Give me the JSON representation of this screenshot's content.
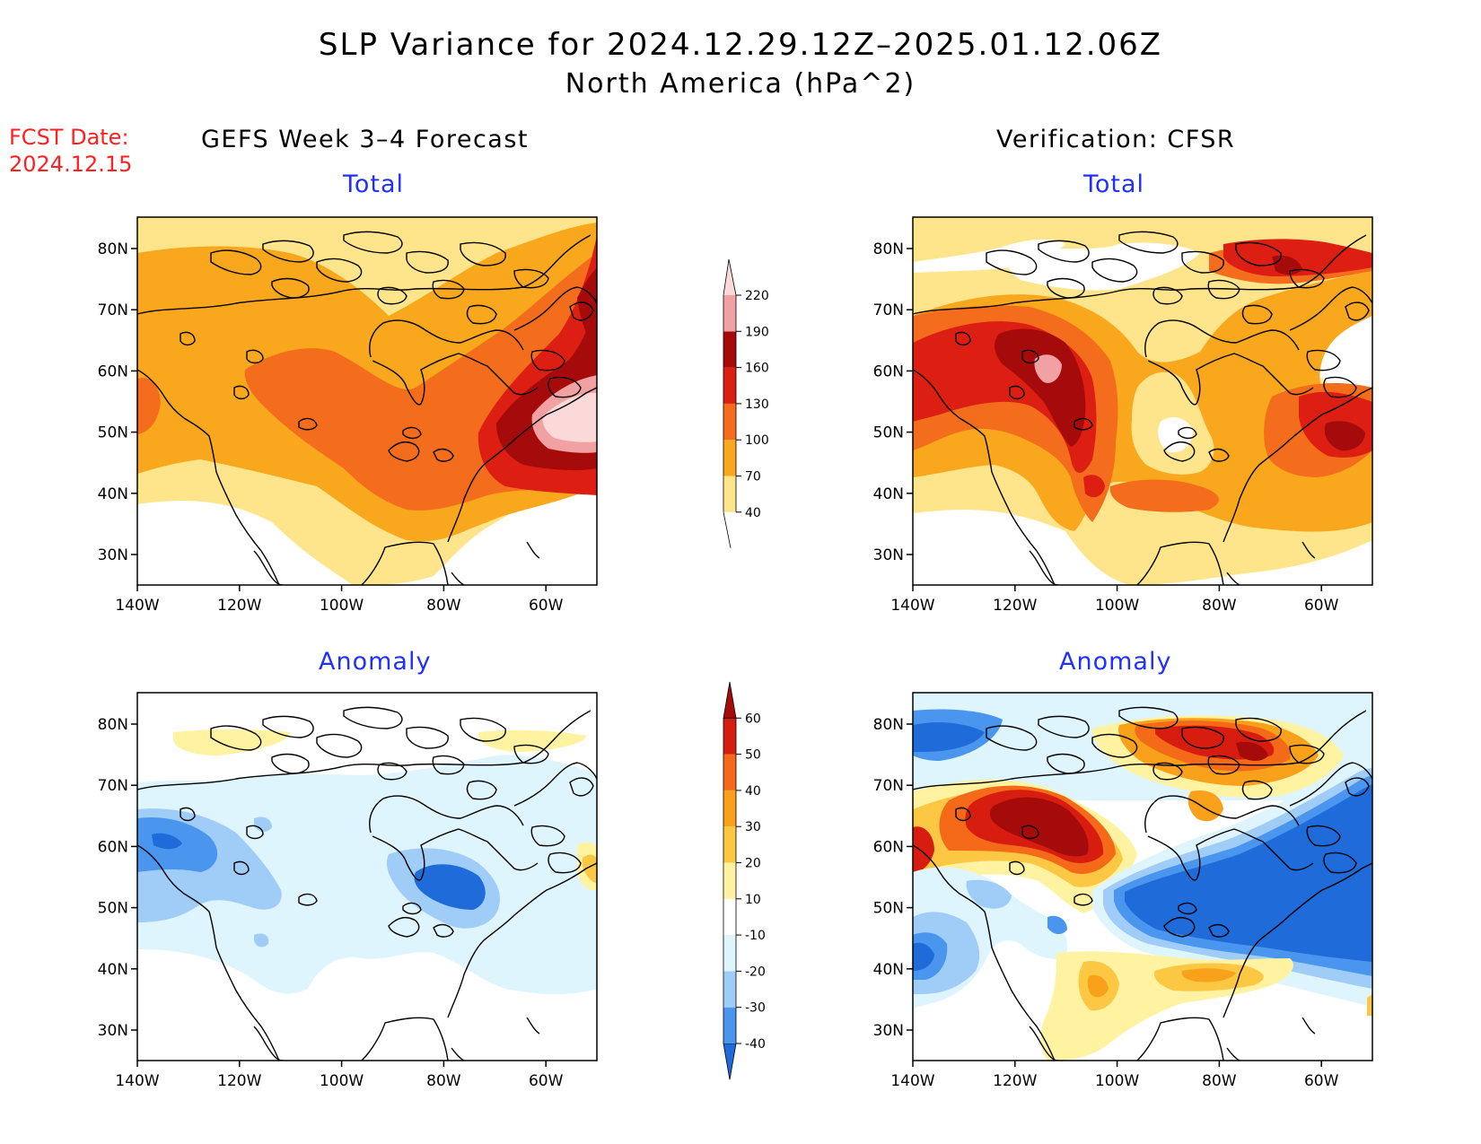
{
  "title": "SLP Variance for 2024.12.29.12Z–2025.01.12.06Z",
  "subtitle": "North America (hPa^2)",
  "fcst_label": "FCST Date:",
  "fcst_date": "2024.12.15",
  "left_header": "GEFS Week 3–4 Forecast",
  "right_header": "Verification: CFSR",
  "panels": [
    {
      "id": "fcst-total",
      "title": "Total"
    },
    {
      "id": "verif-total",
      "title": "Total"
    },
    {
      "id": "fcst-anomaly",
      "title": "Anomaly"
    },
    {
      "id": "verif-anomaly",
      "title": "Anomaly"
    }
  ],
  "axes": {
    "lon_ticks": [
      "140W",
      "120W",
      "100W",
      "80W",
      "60W"
    ],
    "lat_ticks": [
      "80N",
      "70N",
      "60N",
      "50N",
      "40N",
      "30N"
    ]
  },
  "total_colorbar": {
    "labels": [
      "40",
      "70",
      "100",
      "130",
      "160",
      "190",
      "220"
    ],
    "colors": [
      "#fee58c",
      "#f9a71d",
      "#f46d1d",
      "#dc1f12",
      "#a60b0b",
      "#f2a1a3",
      "#fcd9d9"
    ]
  },
  "anomaly_colorbar": {
    "labels": [
      "-40",
      "-30",
      "-20",
      "-10",
      "10",
      "20",
      "30",
      "40",
      "50",
      "60"
    ],
    "colors": [
      "#1f6bd9",
      "#4a95ee",
      "#9fcdf8",
      "#dff5fd",
      "#ffffff",
      "#fff2a0",
      "#fcc844",
      "#f9a11b",
      "#f46a19",
      "#d71d0f",
      "#a60b0b"
    ]
  }
}
